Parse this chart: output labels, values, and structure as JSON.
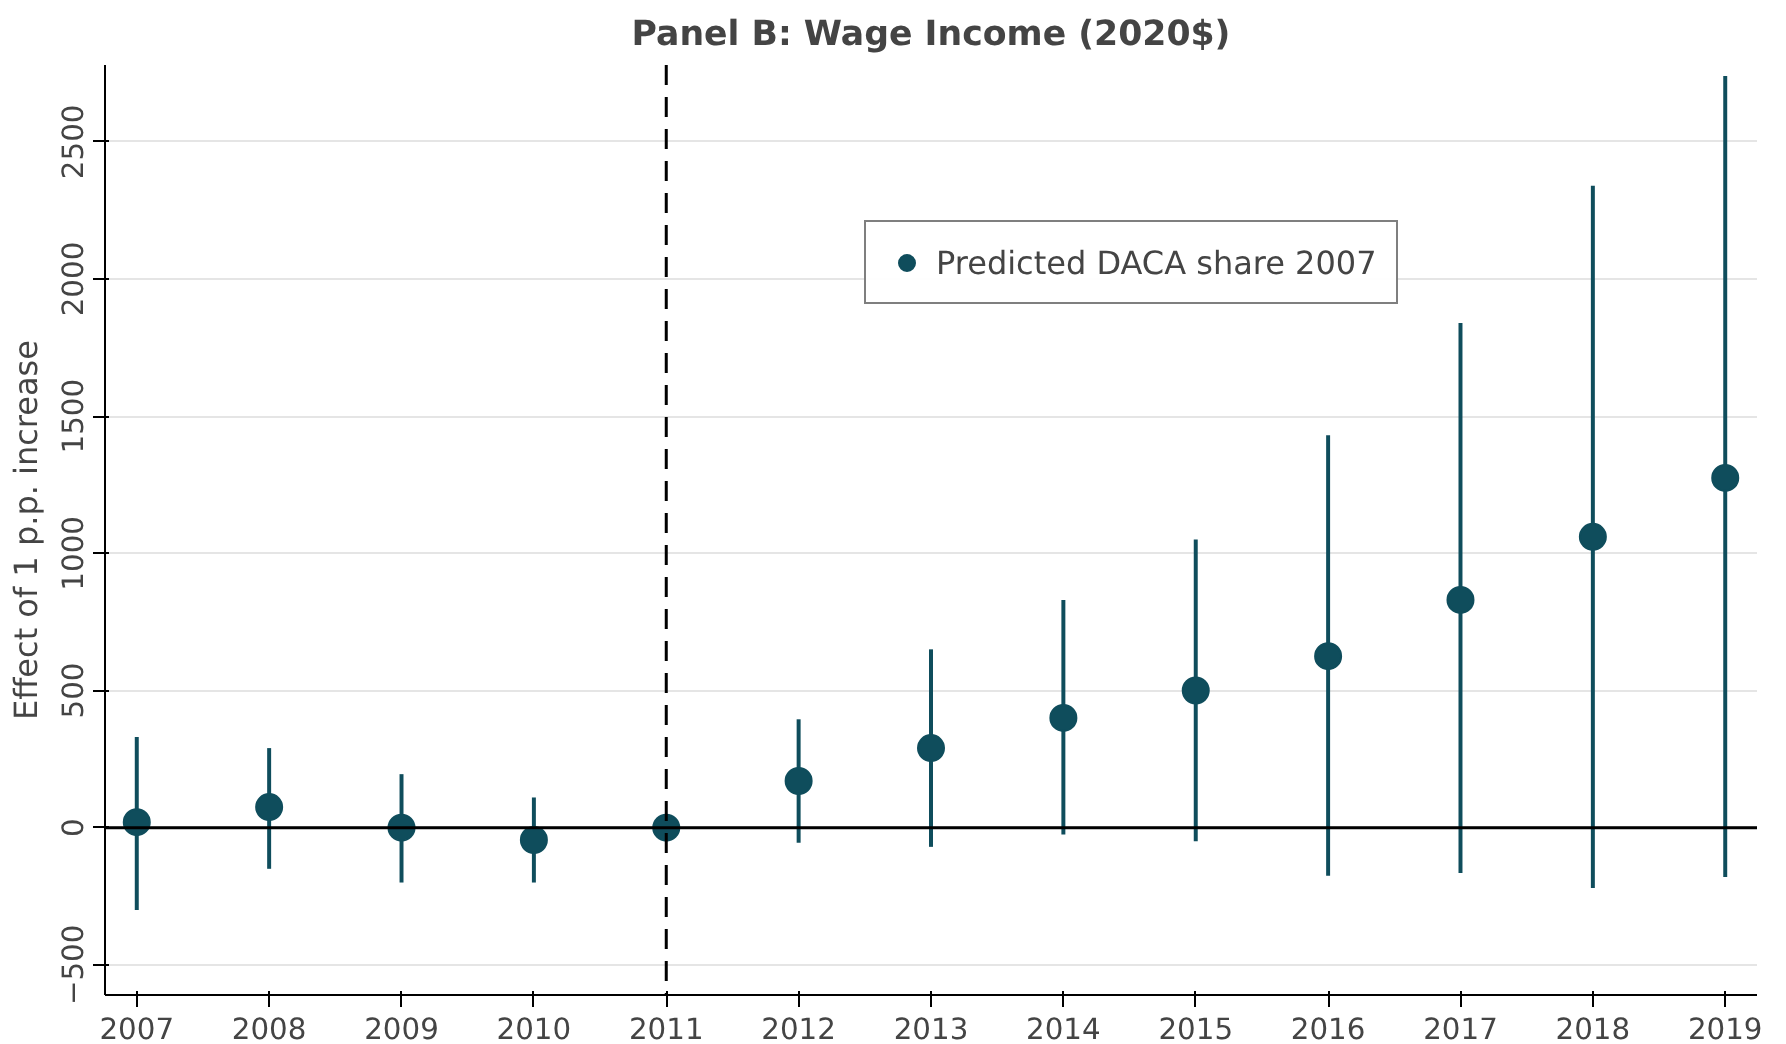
{
  "chart_data": {
    "type": "scatter",
    "title": "Panel B: Wage Income (2020$)",
    "ylabel": "Effect of 1 p.p. increase",
    "x": [
      2007,
      2008,
      2009,
      2010,
      2011,
      2012,
      2013,
      2014,
      2015,
      2016,
      2017,
      2018,
      2019
    ],
    "series": [
      {
        "name": "Predicted DACA share 2007",
        "color": "#0f4d5c",
        "values": [
          20,
          75,
          0,
          -45,
          0,
          170,
          290,
          400,
          500,
          625,
          830,
          1060,
          1275
        ],
        "errors": [
          [
            -300,
            330
          ],
          [
            -150,
            290
          ],
          [
            -200,
            195
          ],
          [
            -200,
            110
          ],
          null,
          [
            -55,
            395
          ],
          [
            -70,
            650
          ],
          [
            -25,
            830
          ],
          [
            -50,
            1050
          ],
          [
            -175,
            1430
          ],
          [
            -165,
            1840
          ],
          [
            -220,
            2340
          ],
          [
            -180,
            2740
          ]
        ]
      }
    ],
    "xlim": [
      2006.76,
      2019.24
    ],
    "ylim": [
      -610,
      2780
    ],
    "xticks": [
      2007,
      2008,
      2009,
      2010,
      2011,
      2012,
      2013,
      2014,
      2015,
      2016,
      2017,
      2018,
      2019
    ],
    "yticks": [
      -500,
      0,
      500,
      1000,
      1500,
      2000,
      2500
    ],
    "ref_lines": [
      {
        "axis": "x",
        "value": 2011,
        "color": "#000000",
        "line_style": "dashed"
      },
      {
        "axis": "y",
        "value": 0,
        "color": "#000000",
        "line_style": "solid"
      }
    ],
    "grid": "y",
    "legend": "top right",
    "marker": "circle"
  }
}
